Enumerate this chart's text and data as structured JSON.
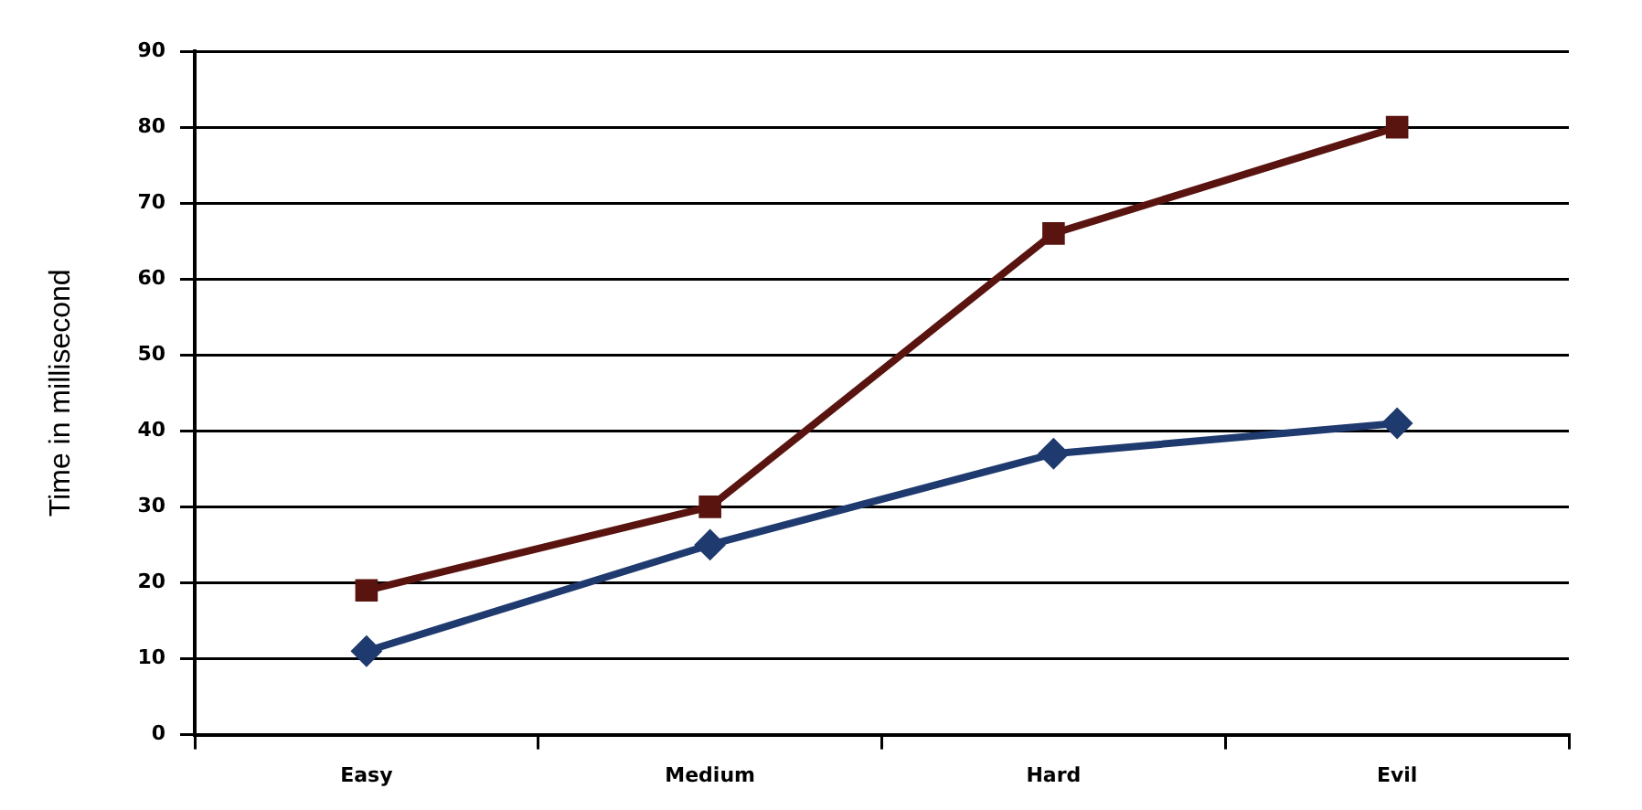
{
  "chart_data": {
    "type": "line",
    "ylabel": "Time in millisecond",
    "categories": [
      "Easy",
      "Medium",
      "Hard",
      "Evil"
    ],
    "series": [
      {
        "color": "#5a1410",
        "marker": "square",
        "values": [
          19,
          30,
          66,
          80
        ]
      },
      {
        "color": "#1f3a6e",
        "marker": "diamond",
        "values": [
          11,
          25,
          37,
          41
        ]
      }
    ],
    "ylim": [
      0,
      90
    ],
    "yticks": [
      0,
      10,
      20,
      30,
      40,
      50,
      60,
      70,
      80,
      90
    ],
    "grid": "y",
    "legend": false,
    "line_style": "solid"
  }
}
